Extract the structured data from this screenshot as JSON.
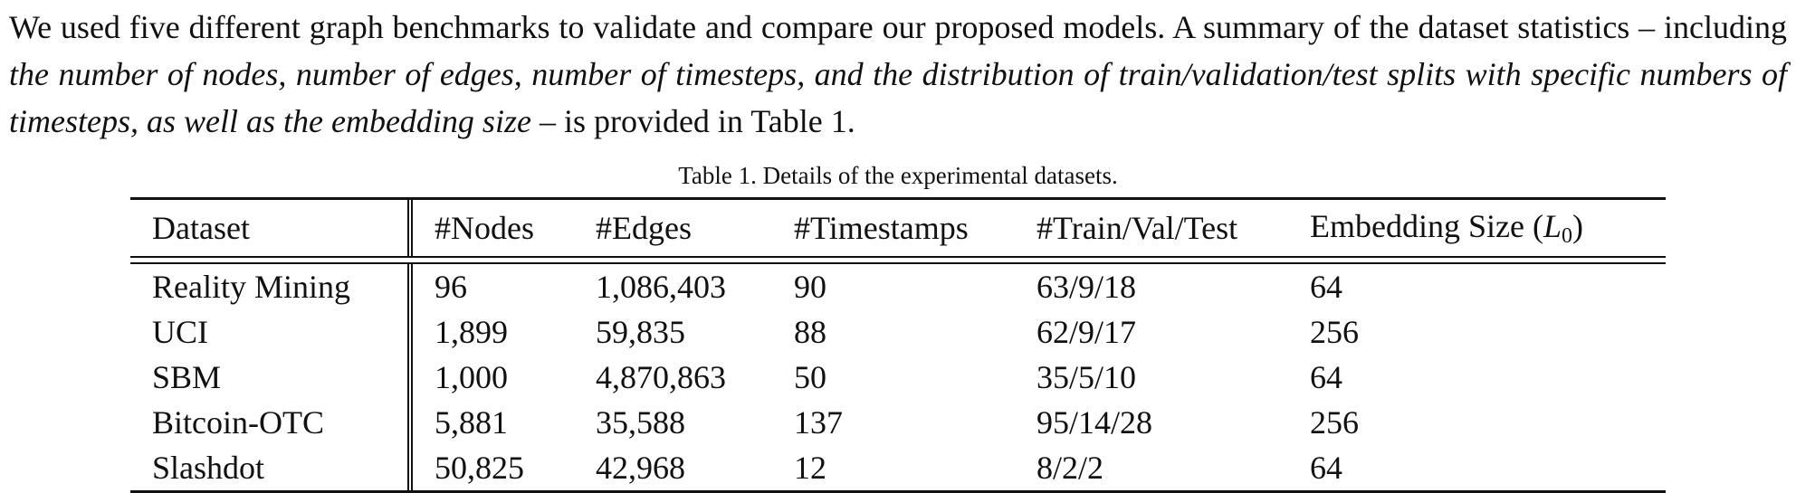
{
  "paragraph": {
    "part1": "We used five different graph benchmarks to validate and compare our proposed models.  A summary of the dataset statistics – including ",
    "emphasis": "the number of nodes, number of edges, number of timesteps, and the distribution of train/validation/test splits with specific numbers of timesteps, as well as the embedding size",
    "part2": " – is provided in Table 1."
  },
  "table": {
    "caption": "Table 1. Details of the experimental datasets.",
    "headers": {
      "dataset": "Dataset",
      "nodes": "#Nodes",
      "edges": "#Edges",
      "timestamps": "#Timestamps",
      "split": "#Train/Val/Test",
      "embedding_prefix": "Embedding Size (",
      "embedding_var": "L",
      "embedding_sub": "0",
      "embedding_suffix": ")"
    },
    "rows": [
      {
        "dataset": "Reality Mining",
        "nodes": "96",
        "edges": "1,086,403",
        "timestamps": "90",
        "split": "63/9/18",
        "embedding": "64"
      },
      {
        "dataset": "UCI",
        "nodes": "1,899",
        "edges": "59,835",
        "timestamps": "88",
        "split": "62/9/17",
        "embedding": "256"
      },
      {
        "dataset": "SBM",
        "nodes": "1,000",
        "edges": "4,870,863",
        "timestamps": "50",
        "split": "35/5/10",
        "embedding": "64"
      },
      {
        "dataset": "Bitcoin-OTC",
        "nodes": "5,881",
        "edges": "35,588",
        "timestamps": "137",
        "split": "95/14/28",
        "embedding": "256"
      },
      {
        "dataset": "Slashdot",
        "nodes": "50,825",
        "edges": "42,968",
        "timestamps": "12",
        "split": "8/2/2",
        "embedding": "64"
      }
    ]
  }
}
